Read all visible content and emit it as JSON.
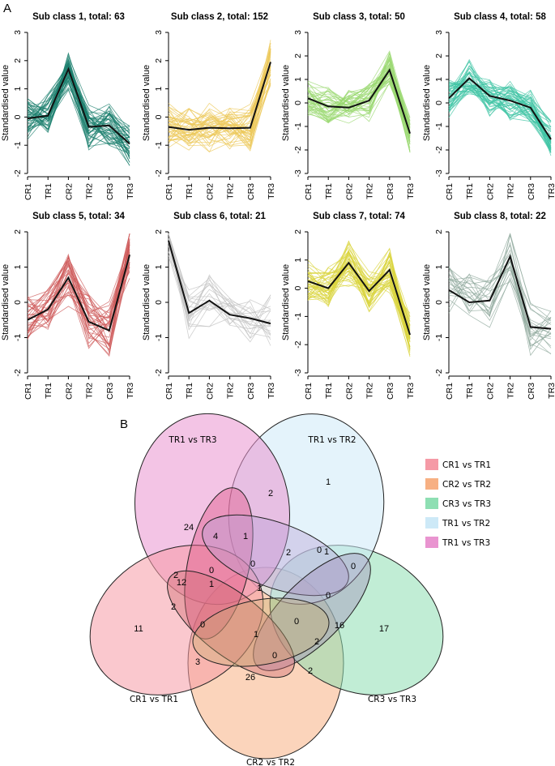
{
  "chart_data": [
    {
      "type": "line",
      "panel": "A",
      "title": "Sub class 1, total: 63",
      "categories": [
        "CR1",
        "TR1",
        "CR2",
        "TR2",
        "CR3",
        "TR3"
      ],
      "ylabel": "Standardised value",
      "ylim": [
        -2,
        3
      ],
      "yticks": [
        -2,
        -1,
        0,
        1,
        2,
        3
      ],
      "color": "#1b7f6e",
      "series": [
        {
          "name": "mean",
          "values": [
            -0.05,
            0.05,
            1.7,
            -0.35,
            -0.3,
            -0.95
          ]
        }
      ],
      "member_count": 63
    },
    {
      "type": "line",
      "panel": "A",
      "title": "Sub class 2, total: 152",
      "categories": [
        "CR1",
        "TR1",
        "CR2",
        "TR2",
        "CR3",
        "TR3"
      ],
      "ylabel": "Standardised value",
      "ylim": [
        -2,
        3
      ],
      "yticks": [
        -2,
        -1,
        0,
        1,
        2,
        3
      ],
      "color": "#ecc85a",
      "series": [
        {
          "name": "mean",
          "values": [
            -0.35,
            -0.45,
            -0.38,
            -0.4,
            -0.38,
            1.95
          ]
        }
      ],
      "member_count": 152
    },
    {
      "type": "line",
      "panel": "A",
      "title": "Sub class 3, total: 50",
      "categories": [
        "CR1",
        "TR1",
        "CR2",
        "TR2",
        "CR3",
        "TR3"
      ],
      "ylabel": "Standardised value",
      "ylim": [
        -3,
        3
      ],
      "yticks": [
        -3,
        -2,
        -1,
        0,
        1,
        2,
        3
      ],
      "color": "#9ad870",
      "series": [
        {
          "name": "mean",
          "values": [
            0.2,
            -0.15,
            -0.2,
            0.1,
            1.4,
            -1.3
          ]
        }
      ],
      "member_count": 50
    },
    {
      "type": "line",
      "panel": "A",
      "title": "Sub class 4, total: 58",
      "categories": [
        "CR1",
        "TR1",
        "CR2",
        "TR2",
        "CR3",
        "TR3"
      ],
      "ylabel": "Standardised value",
      "ylim": [
        -3,
        3
      ],
      "yticks": [
        -3,
        -2,
        -1,
        0,
        1,
        2,
        3
      ],
      "color": "#3fc4a4",
      "series": [
        {
          "name": "mean",
          "values": [
            0.2,
            1.05,
            0.3,
            0.1,
            -0.2,
            -1.55
          ]
        }
      ],
      "member_count": 58
    },
    {
      "type": "line",
      "panel": "A",
      "title": "Sub class 5, total: 34",
      "categories": [
        "CR1",
        "TR1",
        "CR2",
        "TR2",
        "CR3",
        "TR3"
      ],
      "ylabel": "Standardised value",
      "ylim": [
        -2,
        2
      ],
      "yticks": [
        -2,
        -1,
        0,
        1,
        2
      ],
      "color": "#cd5a5a",
      "series": [
        {
          "name": "mean",
          "values": [
            -0.5,
            -0.2,
            0.7,
            -0.55,
            -0.8,
            1.35
          ]
        }
      ],
      "member_count": 34
    },
    {
      "type": "line",
      "panel": "A",
      "title": "Sub class 6, total: 21",
      "categories": [
        "CR1",
        "TR1",
        "CR2",
        "TR2",
        "CR3",
        "TR3"
      ],
      "ylabel": "Standardised value",
      "ylim": [
        -2,
        2
      ],
      "yticks": [
        -2,
        -1,
        0,
        1,
        2
      ],
      "color": "#c2c2c2",
      "series": [
        {
          "name": "mean",
          "values": [
            1.75,
            -0.3,
            0.05,
            -0.35,
            -0.45,
            -0.6
          ]
        }
      ],
      "member_count": 21
    },
    {
      "type": "line",
      "panel": "A",
      "title": "Sub class 7, total: 74",
      "categories": [
        "CR1",
        "TR1",
        "CR2",
        "TR2",
        "CR3",
        "TR3"
      ],
      "ylabel": "Standardised value",
      "ylim": [
        -3,
        2
      ],
      "yticks": [
        -3,
        -2,
        -1,
        0,
        1,
        2
      ],
      "color": "#d9d43c",
      "series": [
        {
          "name": "mean",
          "values": [
            0.25,
            0.0,
            0.9,
            -0.1,
            0.65,
            -1.65
          ]
        }
      ],
      "member_count": 74
    },
    {
      "type": "line",
      "panel": "A",
      "title": "Sub class 8, total: 22",
      "categories": [
        "CR1",
        "TR1",
        "CR2",
        "TR2",
        "CR3",
        "TR3"
      ],
      "ylabel": "Standardised value",
      "ylim": [
        -2,
        2
      ],
      "yticks": [
        -2,
        -1,
        0,
        1,
        2
      ],
      "color": "#8fa89c",
      "series": [
        {
          "name": "mean",
          "values": [
            0.35,
            0.0,
            0.05,
            1.3,
            -0.7,
            -0.75
          ]
        }
      ],
      "member_count": 22
    }
  ],
  "panel_labels": {
    "a": "A",
    "b": "B"
  },
  "venn": {
    "type": "venn",
    "sets": [
      {
        "name": "CR1 vs TR1",
        "color": "#f59aa6"
      },
      {
        "name": "CR2 vs TR2",
        "color": "#f7b083"
      },
      {
        "name": "CR3 vs TR3",
        "color": "#8edfb3"
      },
      {
        "name": "TR1 vs TR2",
        "color": "#cde9f7"
      },
      {
        "name": "TR1 vs TR3",
        "color": "#e994d0"
      }
    ],
    "set_labels": {
      "top_left": "TR1  vs  TR3",
      "top_right": "TR1  vs  TR2",
      "left": "CR1  vs  TR1",
      "right": "CR3  vs  TR3",
      "bottom": "CR2  vs  TR2"
    },
    "region_values": [
      "24",
      "2",
      "1",
      "4",
      "1",
      "2",
      "0",
      "2",
      "0",
      "0",
      "1",
      "0",
      "12",
      "1",
      "1",
      "0",
      "2",
      "16",
      "17",
      "11",
      "0",
      "1",
      "0",
      "0",
      "2",
      "2",
      "3",
      "26"
    ]
  },
  "legend": {
    "items": [
      "CR1  vs  TR1",
      "CR2  vs  TR2",
      "CR3  vs  TR3",
      "TR1  vs  TR2",
      "TR1  vs  TR3"
    ],
    "colors": [
      "#f59aa6",
      "#f7b083",
      "#8edfb3",
      "#cde9f7",
      "#e994d0"
    ]
  }
}
